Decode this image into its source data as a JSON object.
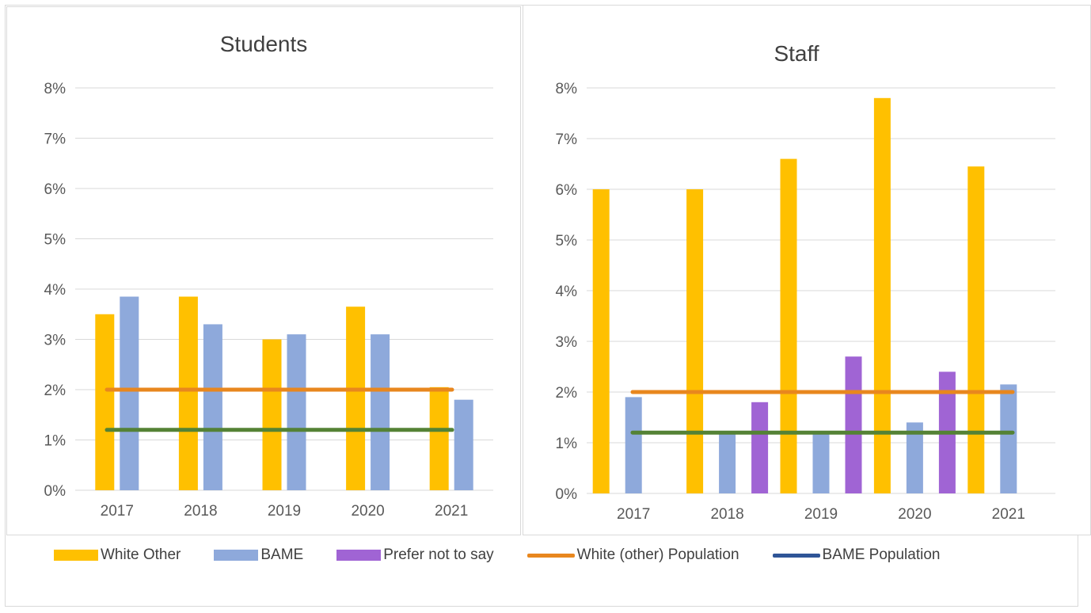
{
  "legend": [
    {
      "label": "White Other",
      "color": "#FFC000",
      "kind": "bar"
    },
    {
      "label": "BAME",
      "color": "#8EA9DB",
      "kind": "bar"
    },
    {
      "label": "Prefer not to say",
      "color": "#A064D4",
      "kind": "bar"
    },
    {
      "label": "White (other) Population",
      "color": "#E8871E",
      "kind": "line"
    },
    {
      "label": "BAME Population",
      "color": "#2F5597",
      "kind": "line"
    }
  ],
  "chart_data": [
    {
      "type": "bar",
      "title": "Students",
      "categories": [
        "2017",
        "2018",
        "2019",
        "2020",
        "2021"
      ],
      "yticks": [
        "0%",
        "1%",
        "2%",
        "3%",
        "4%",
        "5%",
        "6%",
        "7%",
        "8%"
      ],
      "ylim": [
        0,
        8
      ],
      "grid": true,
      "series": [
        {
          "name": "White Other",
          "color": "#FFC000",
          "values": [
            3.5,
            3.85,
            3.0,
            3.65,
            2.05
          ]
        },
        {
          "name": "BAME",
          "color": "#8EA9DB",
          "values": [
            3.85,
            3.3,
            3.1,
            3.1,
            1.8
          ]
        }
      ],
      "reference_lines": [
        {
          "name": "White (other) Population",
          "color": "#E8871E",
          "value": 2.0
        },
        {
          "name": "BAME Population",
          "color": "#548235",
          "value": 1.2
        }
      ]
    },
    {
      "type": "bar",
      "title": "Staff",
      "categories": [
        "2017",
        "2018",
        "2019",
        "2020",
        "2021"
      ],
      "yticks": [
        "0%",
        "1%",
        "2%",
        "3%",
        "4%",
        "5%",
        "6%",
        "7%",
        "8%"
      ],
      "ylim": [
        0,
        8
      ],
      "grid": true,
      "series": [
        {
          "name": "White Other",
          "color": "#FFC000",
          "values": [
            6.0,
            6.0,
            6.6,
            7.8,
            6.45
          ]
        },
        {
          "name": "BAME",
          "color": "#8EA9DB",
          "values": [
            1.9,
            1.2,
            1.2,
            1.4,
            2.15
          ]
        },
        {
          "name": "Prefer not to say",
          "color": "#A064D4",
          "values": [
            0,
            1.8,
            2.7,
            2.4,
            0
          ]
        }
      ],
      "reference_lines": [
        {
          "name": "White (other) Population",
          "color": "#E8871E",
          "value": 2.0
        },
        {
          "name": "BAME Population",
          "color": "#548235",
          "value": 1.2
        }
      ]
    }
  ]
}
